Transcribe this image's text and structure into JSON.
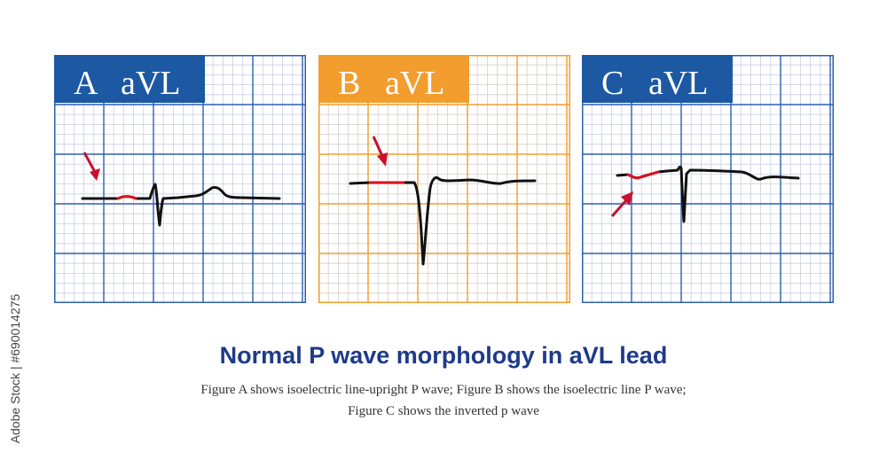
{
  "panels": [
    {
      "id": "a",
      "letter": "A",
      "lead": "aVL",
      "color": "#1d58a3",
      "grid_minor": "#c8cfe0",
      "grid_major": "#2d5fb0"
    },
    {
      "id": "b",
      "letter": "B",
      "lead": "aVL",
      "color": "#f29d2e",
      "grid_minor": "#d4cfc8",
      "grid_major": "#f29d2e"
    },
    {
      "id": "c",
      "letter": "C",
      "lead": "aVL",
      "color": "#1d58a3",
      "grid_minor": "#c8cfe0",
      "grid_major": "#2d5fb0"
    }
  ],
  "colors": {
    "trace": "#111111",
    "p_wave": "#d9141e",
    "arrow": "#c8102e"
  },
  "title": "Normal P wave morphology in aVL lead",
  "caption": {
    "line1": "Figure A shows isoelectric line-upright P wave; Figure B shows the isoelectric line P wave;",
    "line2": "Figure C shows the inverted p wave"
  },
  "watermark": "Adobe Stock | #690014275"
}
